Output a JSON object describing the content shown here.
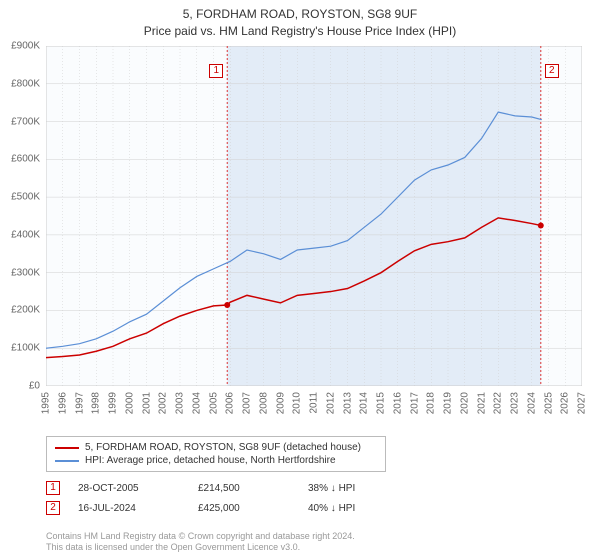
{
  "title": {
    "line1": "5, FORDHAM ROAD, ROYSTON, SG8 9UF",
    "line2": "Price paid vs. HM Land Registry's House Price Index (HPI)"
  },
  "chart": {
    "type": "line",
    "background_color": "#ffffff",
    "plot_area_fill": "#f0f4fa",
    "plot_area_border": "#cccccc",
    "grid_color": "#d0d0d0",
    "title_fontsize": 12,
    "label_fontsize": 10,
    "x_axis": {
      "min": 1995,
      "max": 2027,
      "ticks": [
        1995,
        1996,
        1997,
        1998,
        1999,
        2000,
        2001,
        2002,
        2003,
        2004,
        2005,
        2006,
        2007,
        2008,
        2009,
        2010,
        2011,
        2012,
        2013,
        2014,
        2015,
        2016,
        2017,
        2018,
        2019,
        2020,
        2021,
        2022,
        2023,
        2024,
        2025,
        2026,
        2027
      ],
      "rotation": -90
    },
    "y_axis": {
      "min": 0,
      "max": 900000,
      "tick_step": 100000,
      "labels": [
        "£0",
        "£100K",
        "£200K",
        "£300K",
        "£400K",
        "£500K",
        "£600K",
        "£700K",
        "£800K",
        "£900K"
      ]
    },
    "shaded_region": {
      "x_start": 2005.82,
      "x_end": 2024.54,
      "fill": "#e3ecf7"
    },
    "vertical_markers": [
      {
        "x": 2005.82,
        "color": "#dd3333",
        "dash": "2,2",
        "label": "1"
      },
      {
        "x": 2024.54,
        "color": "#dd3333",
        "dash": "2,2",
        "label": "2"
      }
    ],
    "series": [
      {
        "name": "5, FORDHAM ROAD, ROYSTON, SG8 9UF (detached house)",
        "color": "#cc0000",
        "line_width": 1.5,
        "points": [
          [
            1995,
            75000
          ],
          [
            1996,
            78000
          ],
          [
            1997,
            82000
          ],
          [
            1998,
            92000
          ],
          [
            1999,
            105000
          ],
          [
            2000,
            125000
          ],
          [
            2001,
            140000
          ],
          [
            2002,
            165000
          ],
          [
            2003,
            185000
          ],
          [
            2004,
            200000
          ],
          [
            2005,
            212000
          ],
          [
            2005.82,
            214500
          ],
          [
            2006,
            222000
          ],
          [
            2007,
            240000
          ],
          [
            2008,
            230000
          ],
          [
            2009,
            220000
          ],
          [
            2010,
            240000
          ],
          [
            2011,
            245000
          ],
          [
            2012,
            250000
          ],
          [
            2013,
            258000
          ],
          [
            2014,
            278000
          ],
          [
            2015,
            300000
          ],
          [
            2016,
            330000
          ],
          [
            2017,
            358000
          ],
          [
            2018,
            375000
          ],
          [
            2019,
            382000
          ],
          [
            2020,
            392000
          ],
          [
            2021,
            420000
          ],
          [
            2022,
            445000
          ],
          [
            2023,
            438000
          ],
          [
            2024,
            430000
          ],
          [
            2024.54,
            425000
          ]
        ],
        "sale_markers": [
          {
            "x": 2005.82,
            "y": 214500
          },
          {
            "x": 2024.54,
            "y": 425000
          }
        ]
      },
      {
        "name": "HPI: Average price, detached house, North Hertfordshire",
        "color": "#5b8fd6",
        "line_width": 1.2,
        "points": [
          [
            1995,
            100000
          ],
          [
            1996,
            105000
          ],
          [
            1997,
            112000
          ],
          [
            1998,
            125000
          ],
          [
            1999,
            145000
          ],
          [
            2000,
            170000
          ],
          [
            2001,
            190000
          ],
          [
            2002,
            225000
          ],
          [
            2003,
            260000
          ],
          [
            2004,
            290000
          ],
          [
            2005,
            310000
          ],
          [
            2006,
            330000
          ],
          [
            2007,
            360000
          ],
          [
            2008,
            350000
          ],
          [
            2009,
            335000
          ],
          [
            2010,
            360000
          ],
          [
            2011,
            365000
          ],
          [
            2012,
            370000
          ],
          [
            2013,
            385000
          ],
          [
            2014,
            420000
          ],
          [
            2015,
            455000
          ],
          [
            2016,
            500000
          ],
          [
            2017,
            545000
          ],
          [
            2018,
            572000
          ],
          [
            2019,
            585000
          ],
          [
            2020,
            605000
          ],
          [
            2021,
            655000
          ],
          [
            2022,
            725000
          ],
          [
            2023,
            715000
          ],
          [
            2024,
            712000
          ],
          [
            2024.6,
            705000
          ]
        ]
      }
    ]
  },
  "legend": {
    "items": [
      {
        "color": "#cc0000",
        "label": "5, FORDHAM ROAD, ROYSTON, SG8 9UF (detached house)"
      },
      {
        "color": "#5b8fd6",
        "label": "HPI: Average price, detached house, North Hertfordshire"
      }
    ]
  },
  "sales": [
    {
      "marker": "1",
      "date": "28-OCT-2005",
      "price": "£214,500",
      "hpi": "38% ↓ HPI"
    },
    {
      "marker": "2",
      "date": "16-JUL-2024",
      "price": "£425,000",
      "hpi": "40% ↓ HPI"
    }
  ],
  "footer": {
    "line1": "Contains HM Land Registry data © Crown copyright and database right 2024.",
    "line2": "This data is licensed under the Open Government Licence v3.0."
  }
}
